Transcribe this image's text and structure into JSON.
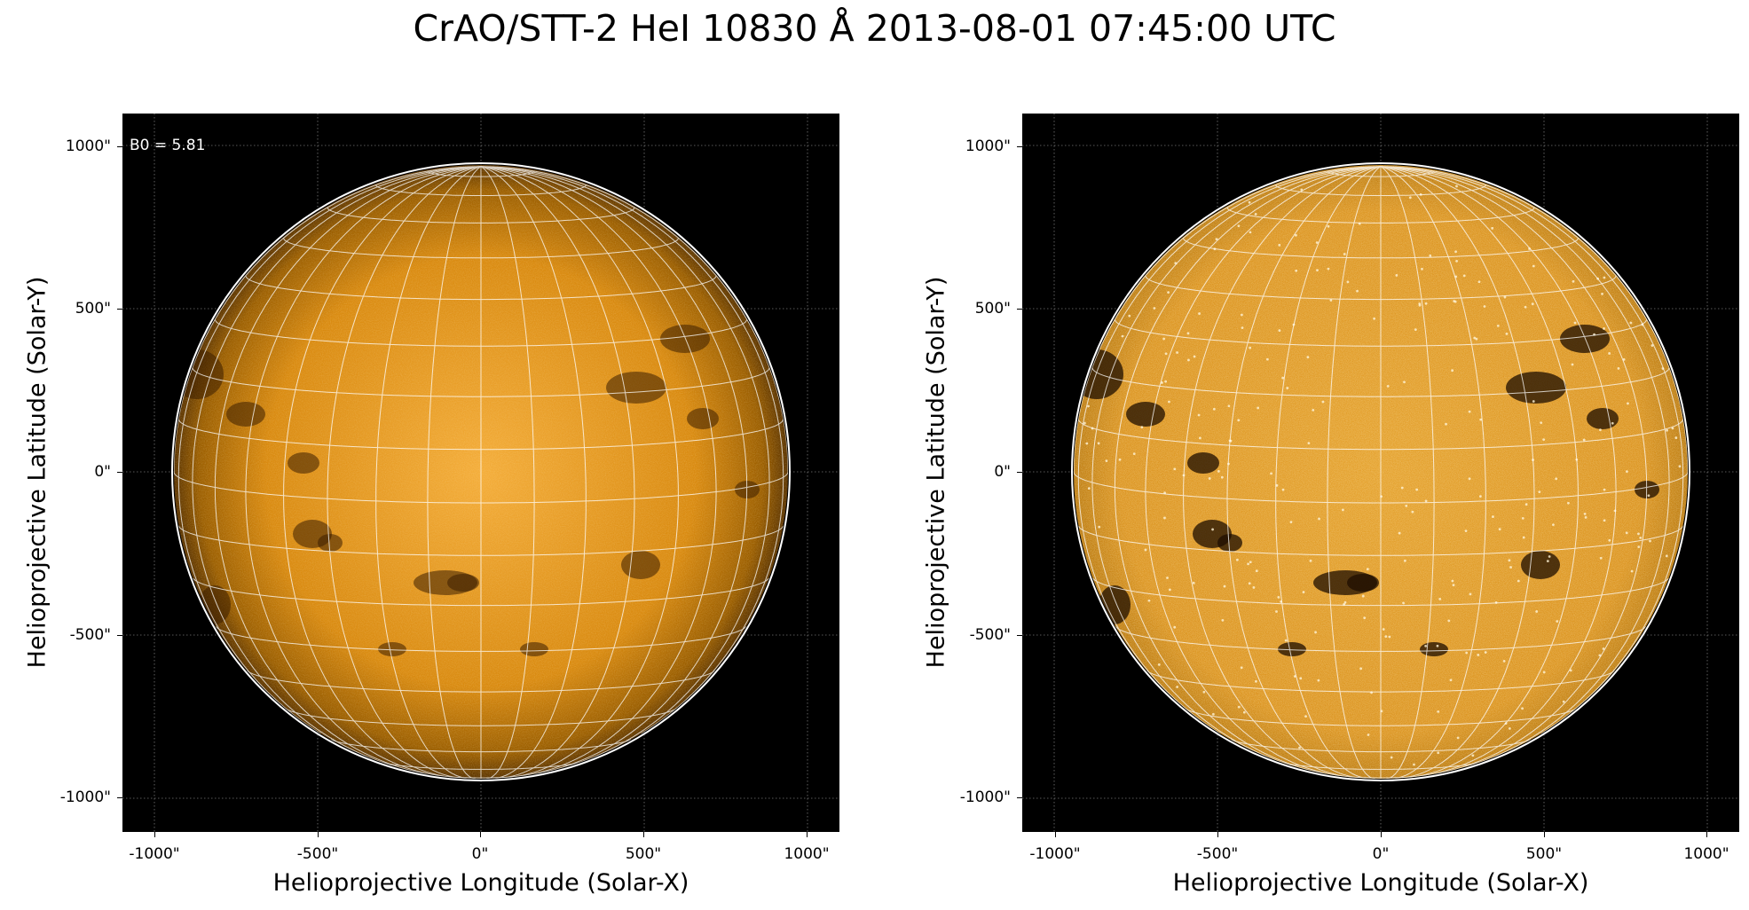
{
  "title": "CrAO/STT-2 HeI 10830 Å 2013-08-01 07:45:00 UTC",
  "panels": [
    {
      "name": "left",
      "annotation": "B0 = 5.81",
      "xlabel": "Helioprojective Longitude (Solar-X)",
      "ylabel": "Helioprojective Latitude (Solar-Y)",
      "x_ticks": [
        "-1000\"",
        "-500\"",
        "0\"",
        "500\"",
        "1000\""
      ],
      "y_ticks": [
        "1000\"",
        "500\"",
        "0\"",
        "-500\"",
        "-1000\""
      ]
    },
    {
      "name": "right",
      "xlabel": "Helioprojective Longitude (Solar-X)",
      "ylabel": "Helioprojective Latitude (Solar-Y)",
      "x_ticks": [
        "-1000\"",
        "-500\"",
        "0\"",
        "500\"",
        "1000\""
      ],
      "y_ticks": [
        "1000\"",
        "500\"",
        "0\"",
        "-500\"",
        "-1000\""
      ]
    }
  ],
  "colors": {
    "background": "#000000",
    "disk_center": "#f0a526",
    "disk_limb": "#5a3300",
    "grid": "#ffffff",
    "limb_circle": "#ffffff"
  }
}
